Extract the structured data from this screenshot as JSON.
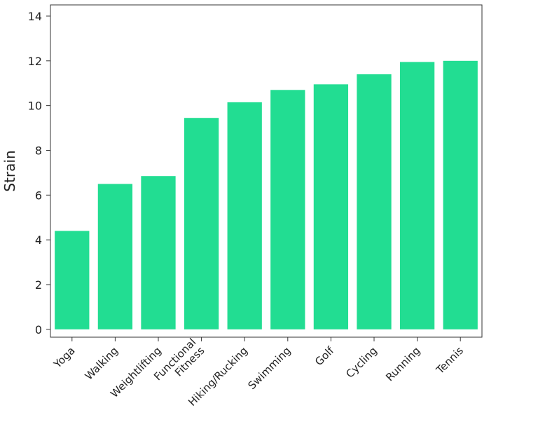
{
  "chart_data": {
    "type": "bar",
    "title": "",
    "xlabel": "",
    "ylabel": "Strain",
    "categories": [
      "Yoga",
      "Walking",
      "Weightlifting",
      "Functional\nFitness",
      "Hiking/Rucking",
      "Swimming",
      "Golf",
      "Cycling",
      "Running",
      "Tennis"
    ],
    "values": [
      4.4,
      6.5,
      6.85,
      9.45,
      10.15,
      10.7,
      10.95,
      11.4,
      11.95,
      12.0
    ],
    "yticks": [
      "0",
      "2",
      "4",
      "6",
      "8",
      "10",
      "12",
      "14"
    ],
    "ylim": [
      -0.35,
      14.5
    ],
    "grid": false,
    "bar_color": "#22DD92"
  }
}
